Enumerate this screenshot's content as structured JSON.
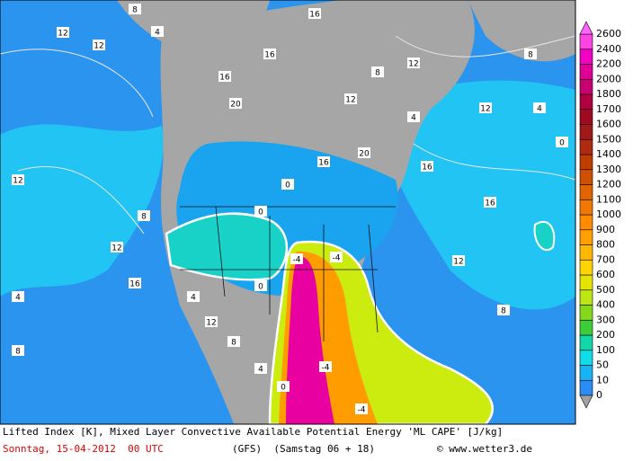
{
  "map": {
    "labels": [
      "12",
      "8",
      "4",
      "12",
      "16",
      "20",
      "16",
      "12",
      "8",
      "4",
      "12",
      "16",
      "20",
      "16",
      "12",
      "8",
      "4",
      "0",
      "0",
      "-4",
      "-4",
      "-4",
      "-4",
      "0",
      "4",
      "8",
      "12",
      "16",
      "12",
      "8",
      "4",
      "0",
      "12",
      "16",
      "8",
      "12",
      "4",
      "8",
      "0",
      "16"
    ]
  },
  "legend": {
    "levels": [
      0,
      10,
      50,
      100,
      200,
      300,
      400,
      500,
      600,
      700,
      800,
      900,
      1000,
      1100,
      1200,
      1300,
      1400,
      1500,
      1600,
      1700,
      1800,
      2000,
      2200,
      2400,
      2600
    ],
    "colors": [
      "#2a8cf5",
      "#16b4f5",
      "#12dcea",
      "#10d8a8",
      "#3ccd38",
      "#86d81c",
      "#bde612",
      "#e4e400",
      "#ffd400",
      "#ffb800",
      "#ffa000",
      "#ff8c00",
      "#f07800",
      "#e06400",
      "#d05000",
      "#c03c00",
      "#b02a10",
      "#a01818",
      "#a00a20",
      "#b00040",
      "#c80070",
      "#e00098",
      "#f400c4",
      "#ff44e4"
    ],
    "top_color": "#ff66ff",
    "bottom_color": "#a0a0a0"
  },
  "footer": {
    "title": "Lifted Index [K], Mixed Layer Convective Available Potential Energy 'ML CAPE' [J/kg]",
    "date": "Sonntag, 15-04-2012  00 UTC",
    "model": "(GFS)  (Samstag 06 + 18)",
    "credit": "© www.wetter3.de"
  }
}
